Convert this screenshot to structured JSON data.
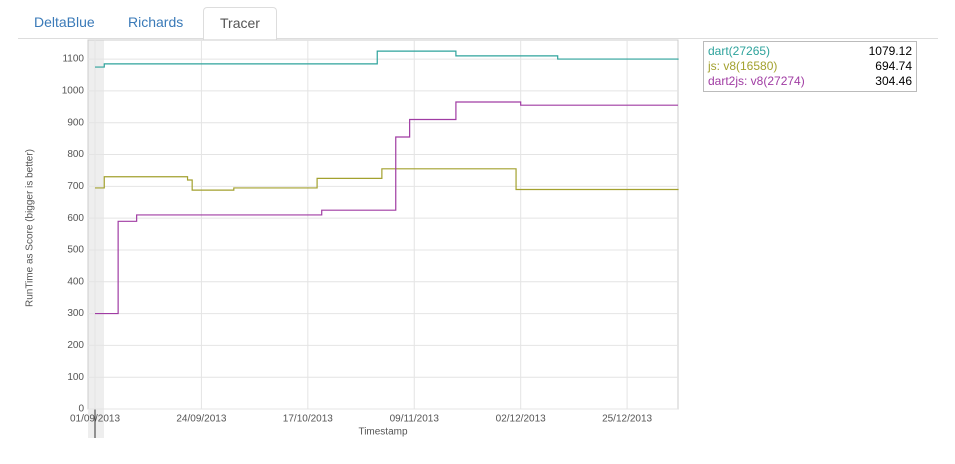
{
  "tabs": [
    "DeltaBlue",
    "Richards",
    "Tracer"
  ],
  "active_tab": 2,
  "chart_data": {
    "type": "line",
    "step": true,
    "y_label": "RunTime as Score (bigger is better)",
    "x_label": "Timestamp",
    "xlim": [
      "2013-09-01",
      "2014-01-05"
    ],
    "xticks": [
      {
        "value": "2013-09-01",
        "label": "01/09/2013"
      },
      {
        "value": "2013-09-24",
        "label": "24/09/2013"
      },
      {
        "value": "2013-10-17",
        "label": "17/10/2013"
      },
      {
        "value": "2013-11-09",
        "label": "09/11/2013"
      },
      {
        "value": "2013-12-02",
        "label": "02/12/2013"
      },
      {
        "value": "2013-12-25",
        "label": "25/12/2013"
      }
    ],
    "ylim": [
      0,
      1160
    ],
    "yticks": [
      0,
      100,
      200,
      300,
      400,
      500,
      600,
      700,
      800,
      900,
      1000,
      1100
    ],
    "grid": true,
    "series": [
      {
        "name": "dart(27265)",
        "color": "#2ea39c",
        "legend_value": 1079.12,
        "x": [
          "2013-09-01",
          "2013-09-03",
          "2013-11-01",
          "2013-11-18",
          "2013-12-10",
          "2014-01-05"
        ],
        "values": [
          1075,
          1085,
          1125,
          1110,
          1100,
          1098
        ]
      },
      {
        "name": "js: v8(16580)",
        "color": "#a3a12e",
        "legend_value": 694.74,
        "x": [
          "2013-09-01",
          "2013-09-03",
          "2013-09-21",
          "2013-09-22",
          "2013-10-01",
          "2013-10-19",
          "2013-11-02",
          "2013-12-01",
          "2014-01-05"
        ],
        "values": [
          695,
          730,
          720,
          688,
          695,
          725,
          755,
          690,
          692
        ]
      },
      {
        "name": "dart2js: v8(27274)",
        "color": "#a03ca3",
        "legend_value": 304.46,
        "x": [
          "2013-09-01",
          "2013-09-06",
          "2013-09-10",
          "2013-10-20",
          "2013-11-05",
          "2013-11-08",
          "2013-11-18",
          "2013-12-02",
          "2014-01-05"
        ],
        "values": [
          300,
          590,
          610,
          625,
          855,
          910,
          965,
          955,
          955
        ]
      }
    ]
  }
}
